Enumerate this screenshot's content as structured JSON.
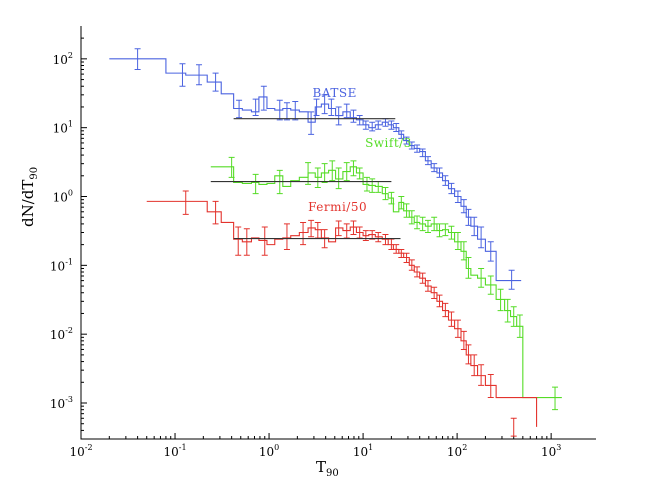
{
  "chart_data": {
    "type": "line",
    "xlabel_main": "T",
    "xlabel_sub": "90",
    "ylabel_main": "dN/dT",
    "ylabel_sub": "90",
    "x_scale": "log",
    "y_scale": "log",
    "xlim": [
      0.01,
      3000
    ],
    "ylim": [
      0.0003,
      300
    ],
    "x_ticks": [
      {
        "value": 0.01,
        "base": "10",
        "exp": "-2"
      },
      {
        "value": 0.1,
        "base": "10",
        "exp": "-1"
      },
      {
        "value": 1,
        "base": "10",
        "exp": "0"
      },
      {
        "value": 10,
        "base": "10",
        "exp": "1"
      },
      {
        "value": 100,
        "base": "10",
        "exp": "2"
      },
      {
        "value": 1000,
        "base": "10",
        "exp": "3"
      }
    ],
    "y_ticks": [
      {
        "value": 0.001,
        "base": "10",
        "exp": "-3"
      },
      {
        "value": 0.01,
        "base": "10",
        "exp": "-2"
      },
      {
        "value": 0.1,
        "base": "10",
        "exp": "-1"
      },
      {
        "value": 1,
        "base": "10",
        "exp": "0"
      },
      {
        "value": 10,
        "base": "10",
        "exp": "1"
      },
      {
        "value": 100,
        "base": "10",
        "exp": "2"
      }
    ],
    "series": [
      {
        "name": "BATSE",
        "color": "#4b63e0",
        "label_at": {
          "x": 2.9,
          "y": 28
        },
        "edges": [
          0.02,
          0.08,
          0.13,
          0.22,
          0.31,
          0.42,
          0.52,
          0.65,
          0.78,
          0.95,
          1.15,
          1.4,
          1.7,
          2.1,
          2.6,
          3.1,
          3.6,
          4.3,
          5.1,
          6.1,
          7.3,
          8.5,
          10,
          11.5,
          13.5,
          16,
          18.5,
          21,
          24,
          27,
          31,
          35,
          40,
          46,
          53,
          61,
          70,
          81,
          94,
          110,
          125,
          140,
          165,
          200,
          260,
          480
        ],
        "values": [
          100,
          62,
          58,
          46,
          31,
          19,
          18,
          17,
          28,
          19,
          18,
          19,
          18,
          17,
          12,
          20,
          22,
          19,
          15,
          17,
          14,
          13,
          11,
          10,
          11,
          12,
          11,
          10,
          8,
          6.5,
          5.5,
          5,
          4.5,
          3.3,
          2.6,
          2.2,
          1.7,
          1.3,
          1.0,
          0.72,
          0.5,
          0.37,
          0.24,
          0.16,
          0.06
        ],
        "errors": [
          [
            0.04,
            100,
            140,
            70
          ],
          [
            0.12,
            62,
            85,
            40
          ],
          [
            0.18,
            60,
            82,
            42
          ],
          [
            0.27,
            46,
            62,
            34
          ],
          [
            0.48,
            19,
            25,
            14
          ],
          [
            0.72,
            20,
            26,
            15
          ],
          [
            0.88,
            26,
            40,
            18
          ],
          [
            1.3,
            19,
            25,
            13
          ],
          [
            1.55,
            18,
            23,
            13
          ],
          [
            1.9,
            18,
            24,
            13
          ],
          [
            2.8,
            12,
            17,
            8
          ],
          [
            3.2,
            20,
            26,
            15
          ],
          [
            3.9,
            22,
            30,
            16
          ],
          [
            4.6,
            20,
            26,
            15
          ],
          [
            5.5,
            15,
            20,
            11
          ],
          [
            6.7,
            18,
            22,
            14
          ],
          [
            7.9,
            15,
            18,
            12
          ],
          [
            9.2,
            13,
            15,
            11
          ],
          [
            10.7,
            11,
            12.5,
            9.5
          ],
          [
            12.5,
            10.5,
            12,
            9
          ],
          [
            14.5,
            11,
            12.5,
            9.5
          ],
          [
            17.3,
            12,
            13.5,
            10.5
          ],
          [
            20,
            11,
            12.5,
            9.5
          ],
          [
            22.5,
            10,
            11.5,
            8.8
          ],
          [
            25.5,
            8,
            9,
            7
          ],
          [
            29,
            6.5,
            7.3,
            5.8
          ],
          [
            33,
            5.5,
            6.2,
            4.9
          ],
          [
            37.5,
            5,
            5.6,
            4.4
          ],
          [
            43,
            4.3,
            4.9,
            3.8
          ],
          [
            49,
            3.3,
            3.8,
            2.9
          ],
          [
            57,
            2.6,
            3,
            2.3
          ],
          [
            65,
            2.2,
            2.6,
            1.9
          ],
          [
            75,
            1.7,
            2,
            1.45
          ],
          [
            87,
            1.3,
            1.55,
            1.1
          ],
          [
            102,
            1.0,
            1.2,
            0.82
          ],
          [
            118,
            0.72,
            0.9,
            0.58
          ],
          [
            132,
            0.5,
            0.65,
            0.38
          ],
          [
            152,
            0.37,
            0.5,
            0.27
          ],
          [
            180,
            0.25,
            0.36,
            0.18
          ],
          [
            228,
            0.16,
            0.22,
            0.115
          ],
          [
            380,
            0.06,
            0.085,
            0.045
          ]
        ],
        "fit": {
          "x_start": 0.42,
          "x_end": 22,
          "y": 13.5
        }
      },
      {
        "name": "Swift/3",
        "color": "#55dc26",
        "label_at": {
          "x": 10.5,
          "y": 5.2
        },
        "edges": [
          0.24,
          0.42,
          0.52,
          0.65,
          0.78,
          0.95,
          1.15,
          1.4,
          1.7,
          2.1,
          2.6,
          3.1,
          3.6,
          4.3,
          5.1,
          6.1,
          7.3,
          8.5,
          10,
          11.5,
          13.5,
          16,
          18.5,
          21,
          24,
          27,
          31,
          35,
          40,
          46,
          53,
          61,
          70,
          81,
          94,
          110,
          125,
          140,
          165,
          200,
          260,
          320,
          370,
          430,
          500,
          1300
        ],
        "values": [
          2.7,
          1.6,
          1.55,
          1.6,
          1.5,
          1.55,
          2.0,
          1.4,
          1.7,
          1.9,
          2.2,
          1.9,
          2.2,
          2.4,
          1.8,
          2.3,
          2.7,
          2.2,
          1.5,
          1.45,
          1.4,
          1.1,
          0.95,
          0.6,
          0.82,
          0.62,
          0.5,
          0.42,
          0.4,
          0.37,
          0.4,
          0.32,
          0.33,
          0.3,
          0.22,
          0.16,
          0.09,
          0.072,
          0.065,
          0.052,
          0.032,
          0.022,
          0.018,
          0.013,
          0.0012
        ],
        "errors": [
          [
            0.4,
            2.7,
            3.7,
            1.9
          ],
          [
            0.72,
            1.55,
            2.1,
            1.1
          ],
          [
            1.3,
            1.6,
            2.4,
            1.1
          ],
          [
            2.6,
            2.2,
            3.1,
            1.5
          ],
          [
            3.3,
            1.9,
            2.6,
            1.35
          ],
          [
            3.9,
            2.2,
            3.0,
            1.6
          ],
          [
            4.7,
            2.4,
            3.3,
            1.7
          ],
          [
            5.5,
            1.8,
            2.6,
            1.3
          ],
          [
            6.7,
            2.3,
            3.1,
            1.7
          ],
          [
            7.9,
            2.7,
            3.3,
            2.0
          ],
          [
            9.2,
            2.2,
            2.6,
            1.8
          ],
          [
            11,
            1.5,
            1.9,
            1.2
          ],
          [
            12.5,
            1.45,
            1.8,
            1.15
          ],
          [
            14.5,
            1.4,
            1.65,
            1.15
          ],
          [
            17.3,
            1.1,
            1.35,
            0.9
          ],
          [
            20,
            0.95,
            1.15,
            0.78
          ],
          [
            25.5,
            0.82,
            1.0,
            0.66
          ],
          [
            29,
            0.62,
            0.78,
            0.5
          ],
          [
            33,
            0.5,
            0.62,
            0.4
          ],
          [
            37.5,
            0.42,
            0.52,
            0.34
          ],
          [
            43,
            0.4,
            0.5,
            0.32
          ],
          [
            49,
            0.37,
            0.45,
            0.3
          ],
          [
            57,
            0.4,
            0.5,
            0.32
          ],
          [
            65,
            0.32,
            0.4,
            0.26
          ],
          [
            75,
            0.33,
            0.4,
            0.27
          ],
          [
            87,
            0.3,
            0.37,
            0.24
          ],
          [
            102,
            0.22,
            0.3,
            0.17
          ],
          [
            118,
            0.16,
            0.22,
            0.12
          ],
          [
            132,
            0.09,
            0.13,
            0.065
          ],
          [
            180,
            0.065,
            0.09,
            0.048
          ],
          [
            228,
            0.052,
            0.07,
            0.038
          ],
          [
            290,
            0.032,
            0.045,
            0.022
          ],
          [
            345,
            0.022,
            0.032,
            0.015
          ],
          [
            400,
            0.018,
            0.025,
            0.013
          ],
          [
            465,
            0.013,
            0.019,
            0.009
          ],
          [
            1100,
            0.0012,
            0.0017,
            0.0008
          ]
        ],
        "fit": {
          "x_start": 0.24,
          "x_end": 20,
          "y": 1.65
        }
      },
      {
        "name": "Fermi/50",
        "color": "#e3332d",
        "label_at": {
          "x": 2.6,
          "y": 0.62
        },
        "edges": [
          0.05,
          0.22,
          0.31,
          0.42,
          0.52,
          0.65,
          0.78,
          0.95,
          1.15,
          1.4,
          1.7,
          2.1,
          2.6,
          3.1,
          3.6,
          4.3,
          5.1,
          6.1,
          7.3,
          8.5,
          10,
          11.5,
          13.5,
          16,
          18.5,
          21,
          24,
          27,
          31,
          35,
          40,
          46,
          53,
          61,
          70,
          81,
          94,
          110,
          125,
          140,
          165,
          200,
          260,
          700
        ],
        "values": [
          0.85,
          0.6,
          0.42,
          0.24,
          0.22,
          0.25,
          0.23,
          0.2,
          0.24,
          0.25,
          0.27,
          0.3,
          0.35,
          0.33,
          0.25,
          0.22,
          0.35,
          0.32,
          0.36,
          0.3,
          0.27,
          0.28,
          0.26,
          0.24,
          0.2,
          0.17,
          0.15,
          0.13,
          0.1,
          0.08,
          0.065,
          0.05,
          0.04,
          0.03,
          0.022,
          0.016,
          0.012,
          0.008,
          0.005,
          0.0035,
          0.0025,
          0.0018,
          0.0012,
          0.00045
        ],
        "errors": [
          [
            0.13,
            0.85,
            1.2,
            0.55
          ],
          [
            0.27,
            0.6,
            0.85,
            0.4
          ],
          [
            0.47,
            0.24,
            0.36,
            0.14
          ],
          [
            0.58,
            0.22,
            0.34,
            0.14
          ],
          [
            0.9,
            0.23,
            0.36,
            0.14
          ],
          [
            1.55,
            0.27,
            0.4,
            0.17
          ],
          [
            2.3,
            0.3,
            0.42,
            0.2
          ],
          [
            2.8,
            0.35,
            0.45,
            0.26
          ],
          [
            3.3,
            0.33,
            0.42,
            0.25
          ],
          [
            3.9,
            0.25,
            0.33,
            0.18
          ],
          [
            5.5,
            0.35,
            0.44,
            0.27
          ],
          [
            6.7,
            0.32,
            0.4,
            0.25
          ],
          [
            7.9,
            0.36,
            0.44,
            0.28
          ],
          [
            9.2,
            0.3,
            0.36,
            0.25
          ],
          [
            10.7,
            0.27,
            0.32,
            0.23
          ],
          [
            12.5,
            0.28,
            0.32,
            0.24
          ],
          [
            14.5,
            0.26,
            0.3,
            0.22
          ],
          [
            17.3,
            0.24,
            0.28,
            0.2
          ],
          [
            20,
            0.2,
            0.24,
            0.17
          ],
          [
            22.5,
            0.17,
            0.2,
            0.15
          ],
          [
            25.5,
            0.15,
            0.17,
            0.13
          ],
          [
            29,
            0.13,
            0.15,
            0.11
          ],
          [
            33,
            0.1,
            0.12,
            0.085
          ],
          [
            37.5,
            0.08,
            0.095,
            0.068
          ],
          [
            43,
            0.065,
            0.077,
            0.055
          ],
          [
            49,
            0.05,
            0.06,
            0.042
          ],
          [
            57,
            0.04,
            0.048,
            0.033
          ],
          [
            65,
            0.03,
            0.037,
            0.025
          ],
          [
            75,
            0.022,
            0.028,
            0.018
          ],
          [
            87,
            0.016,
            0.021,
            0.013
          ],
          [
            102,
            0.012,
            0.016,
            0.009
          ],
          [
            118,
            0.008,
            0.011,
            0.006
          ],
          [
            132,
            0.005,
            0.007,
            0.0037
          ],
          [
            152,
            0.0035,
            0.005,
            0.0025
          ],
          [
            180,
            0.0025,
            0.0036,
            0.0018
          ],
          [
            228,
            0.0018,
            0.0026,
            0.0012
          ],
          [
            400,
            0.00045,
            0.0006,
            0.00033
          ]
        ],
        "fit": {
          "x_start": 0.42,
          "x_end": 25,
          "y": 0.245
        }
      }
    ]
  }
}
